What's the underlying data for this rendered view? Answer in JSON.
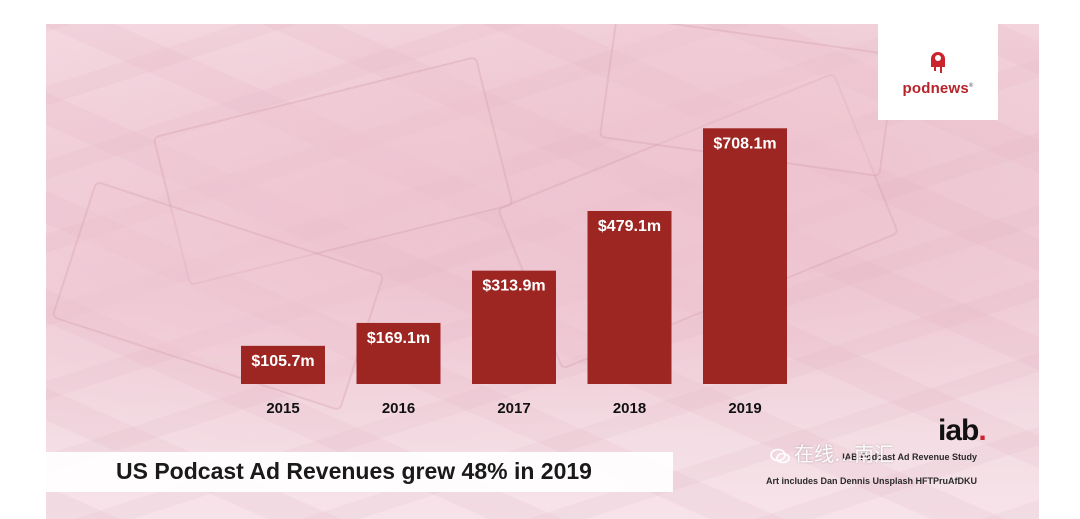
{
  "chart_data": {
    "type": "bar",
    "categories": [
      "2015",
      "2016",
      "2017",
      "2018",
      "2019"
    ],
    "values": [
      105.7,
      169.1,
      313.9,
      479.1,
      708.1
    ],
    "value_labels": [
      "$105.7m",
      "$169.1m",
      "$313.9m",
      "$479.1m",
      "$708.1m"
    ],
    "title": "US Podcast Ad Revenues grew 48% in 2019",
    "xlabel": "",
    "ylabel": "",
    "ylim": [
      0,
      720
    ],
    "bar_color": "#9d2622",
    "grid": false,
    "legend": "none"
  },
  "branding": {
    "podnews_logo": "podnews",
    "iab_logo": "iab",
    "iab_dot_color": "#c9252c",
    "credit_lines": [
      "IAB Podcast Ad Revenue Study",
      "",
      "Art includes Dan Dennis Unsplash HFTPruAfDKU"
    ],
    "watermark": "在线…南汇"
  }
}
